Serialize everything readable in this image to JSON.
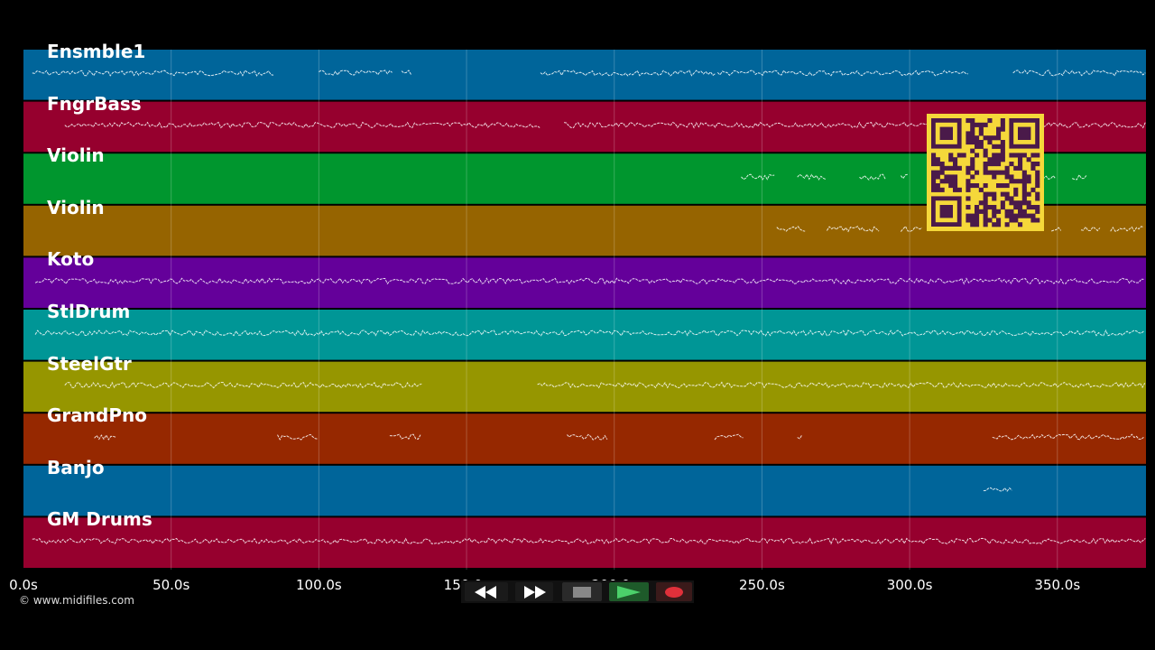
{
  "timeline": {
    "ticks": [
      {
        "label": "0.0s",
        "t": 0
      },
      {
        "label": "50.0s",
        "t": 50
      },
      {
        "label": "100.0s",
        "t": 100
      },
      {
        "label": "150.0s",
        "t": 150
      },
      {
        "label": "200.0s",
        "t": 200
      },
      {
        "label": "250.0s",
        "t": 250
      },
      {
        "label": "300.0s",
        "t": 300
      },
      {
        "label": "350.0s",
        "t": 350
      }
    ],
    "max_seconds": 380
  },
  "lanes": [
    {
      "name": "Ensmble1",
      "color": "#00659a"
    },
    {
      "name": "FngrBass",
      "color": "#96002e"
    },
    {
      "name": "Violin",
      "color": "#00962e"
    },
    {
      "name": "Violin",
      "color": "#966400"
    },
    {
      "name": "Koto",
      "color": "#64009a"
    },
    {
      "name": "StlDrum",
      "color": "#009696"
    },
    {
      "name": "SteelGtr",
      "color": "#969600"
    },
    {
      "name": "GrandPno",
      "color": "#962800"
    },
    {
      "name": "Banjo",
      "color": "#00659a"
    },
    {
      "name": "GM Drums",
      "color": "#96002e"
    }
  ],
  "copyright": "© www.midifiles.com",
  "transport": {
    "rewind": "rewind-icon",
    "fast_forward": "fast-forward-icon",
    "stop": "stop-icon",
    "play": "play-icon",
    "record": "record-icon",
    "colors": {
      "play": "#2ea24a",
      "record": "#e0303a",
      "stop": "#888888"
    }
  },
  "qr_code": {
    "color": "#f5d83a",
    "module_color": "#4a1a4a"
  }
}
